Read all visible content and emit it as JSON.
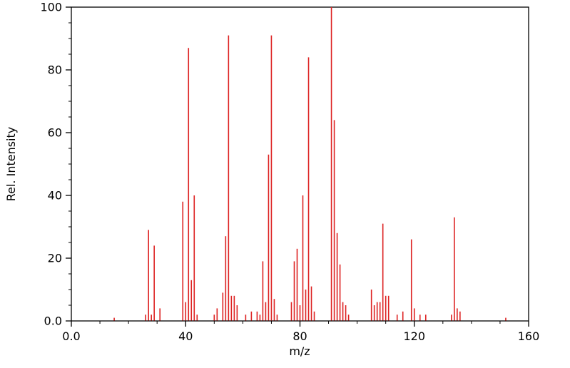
{
  "chart_data": {
    "type": "bar",
    "subtype": "mass-spectrum",
    "title": "",
    "xlabel": "m/z",
    "ylabel": "Rel. Intensity",
    "xlim": [
      0,
      160
    ],
    "ylim": [
      0,
      100
    ],
    "grid": false,
    "legend": "none",
    "frame_color": "#000000",
    "bar_color": "#dd2222",
    "background_color": "#ffffff",
    "x_major_ticks": [
      0,
      40,
      80,
      120,
      160
    ],
    "x_major_tick_labels": [
      "0.0",
      "40",
      "80",
      "120",
      "160"
    ],
    "x_minor_step": 10,
    "y_major_ticks": [
      0,
      20,
      40,
      60,
      80,
      100
    ],
    "y_major_tick_labels": [
      "0.0",
      "20",
      "40",
      "60",
      "80",
      "100"
    ],
    "y_minor_step": 5,
    "peaks": [
      [
        15,
        1
      ],
      [
        26,
        2
      ],
      [
        27,
        29
      ],
      [
        28,
        2
      ],
      [
        29,
        24
      ],
      [
        31,
        4
      ],
      [
        39,
        38
      ],
      [
        40,
        6
      ],
      [
        41,
        87
      ],
      [
        42,
        13
      ],
      [
        43,
        40
      ],
      [
        44,
        2
      ],
      [
        50,
        2
      ],
      [
        51,
        4
      ],
      [
        53,
        9
      ],
      [
        54,
        27
      ],
      [
        55,
        91
      ],
      [
        56,
        8
      ],
      [
        57,
        8
      ],
      [
        58,
        5
      ],
      [
        61,
        2
      ],
      [
        63,
        3
      ],
      [
        65,
        3
      ],
      [
        66,
        2
      ],
      [
        67,
        19
      ],
      [
        68,
        6
      ],
      [
        69,
        53
      ],
      [
        70,
        91
      ],
      [
        71,
        7
      ],
      [
        72,
        2
      ],
      [
        77,
        6
      ],
      [
        78,
        19
      ],
      [
        79,
        23
      ],
      [
        80,
        5
      ],
      [
        81,
        40
      ],
      [
        82,
        10
      ],
      [
        83,
        84
      ],
      [
        84,
        11
      ],
      [
        85,
        3
      ],
      [
        91,
        100
      ],
      [
        92,
        64
      ],
      [
        93,
        28
      ],
      [
        94,
        18
      ],
      [
        95,
        6
      ],
      [
        96,
        5
      ],
      [
        97,
        2
      ],
      [
        105,
        10
      ],
      [
        106,
        5
      ],
      [
        107,
        6
      ],
      [
        108,
        6
      ],
      [
        109,
        31
      ],
      [
        110,
        8
      ],
      [
        111,
        8
      ],
      [
        114,
        2
      ],
      [
        116,
        3
      ],
      [
        119,
        26
      ],
      [
        120,
        4
      ],
      [
        122,
        2
      ],
      [
        124,
        2
      ],
      [
        133,
        2
      ],
      [
        134,
        33
      ],
      [
        135,
        4
      ],
      [
        136,
        3
      ],
      [
        152,
        1
      ]
    ]
  }
}
